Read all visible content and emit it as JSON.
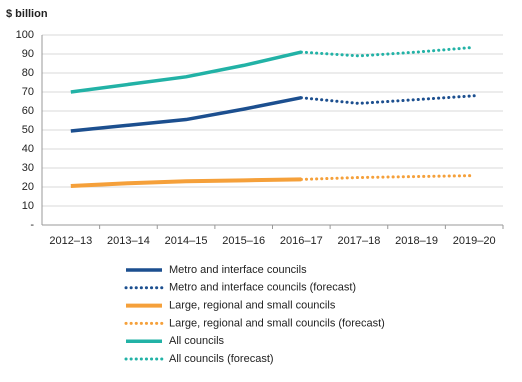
{
  "chart_data": {
    "type": "line",
    "y_label": "$ billion",
    "categories": [
      "2012–13",
      "2013–14",
      "2014–15",
      "2015–16",
      "2016–17",
      "2017–18",
      "2018–19",
      "2019–20"
    ],
    "series": [
      {
        "name": "Metro and interface councils",
        "color": "#1c4f8f",
        "style": "solid",
        "values": [
          49.5,
          52.5,
          55.5,
          61,
          67,
          null,
          null,
          null
        ]
      },
      {
        "name": "Metro and interface councils (forecast)",
        "color": "#1c4f8f",
        "style": "dotted",
        "values": [
          null,
          null,
          null,
          null,
          67,
          64,
          66,
          68
        ]
      },
      {
        "name": "Large, regional and small councils",
        "color": "#f5a03a",
        "style": "solid",
        "values": [
          20.5,
          22,
          23,
          23.5,
          24,
          null,
          null,
          null
        ]
      },
      {
        "name": "Large, regional and small councils (forecast)",
        "color": "#f5a03a",
        "style": "dotted",
        "values": [
          null,
          null,
          null,
          null,
          24,
          25,
          25.5,
          26
        ]
      },
      {
        "name": "All councils",
        "color": "#22b2a6",
        "style": "solid",
        "values": [
          70,
          74,
          78,
          84,
          91,
          null,
          null,
          null
        ]
      },
      {
        "name": "All councils (forecast)",
        "color": "#22b2a6",
        "style": "dotted",
        "values": [
          null,
          null,
          null,
          null,
          91,
          89,
          91,
          93.5
        ]
      }
    ],
    "ylim": [
      0,
      100
    ],
    "yticks": [
      {
        "value": 0,
        "label": "-"
      },
      10,
      20,
      30,
      40,
      50,
      60,
      70,
      80,
      90,
      100
    ],
    "grid": true,
    "legend": "bottom"
  }
}
